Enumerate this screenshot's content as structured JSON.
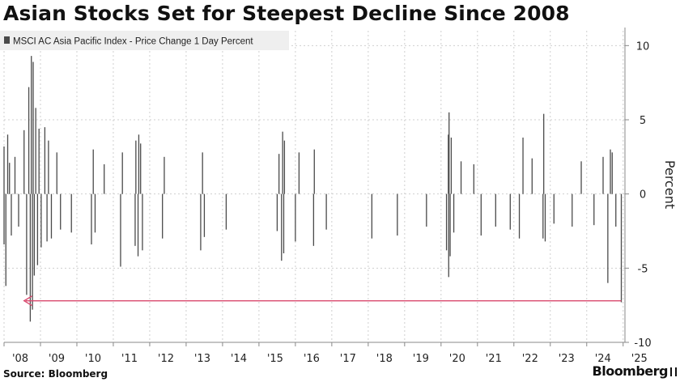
{
  "chart_data": {
    "type": "bar",
    "title": "Asian Stocks Set for Steepest Decline Since 2008",
    "legend": "MSCI AC Asia Pacific Index - Price Change 1 Day Percent",
    "ylabel": "Percent",
    "ylim": [
      -10,
      11
    ],
    "yticks": [
      {
        "value": 10,
        "label": "10"
      },
      {
        "value": 5,
        "label": "5"
      },
      {
        "value": 0,
        "label": "0"
      },
      {
        "value": -5,
        "label": "-5"
      },
      {
        "value": -10,
        "label": "-10"
      }
    ],
    "xlim": [
      2008.0,
      2025.05
    ],
    "xticks": [
      {
        "value": 2008.0,
        "label": "'08"
      },
      {
        "value": 2009.0,
        "label": "'09"
      },
      {
        "value": 2010.0,
        "label": "'10"
      },
      {
        "value": 2011.0,
        "label": "'11"
      },
      {
        "value": 2012.0,
        "label": "'12"
      },
      {
        "value": 2013.0,
        "label": "'13"
      },
      {
        "value": 2014.0,
        "label": "'14"
      },
      {
        "value": 2015.0,
        "label": "'15"
      },
      {
        "value": 2016.0,
        "label": "'16"
      },
      {
        "value": 2017.0,
        "label": "'17"
      },
      {
        "value": 2018.0,
        "label": "'18"
      },
      {
        "value": 2019.0,
        "label": "'19"
      },
      {
        "value": 2020.0,
        "label": "'20"
      },
      {
        "value": 2021.0,
        "label": "'21"
      },
      {
        "value": 2022.0,
        "label": "'22"
      },
      {
        "value": 2023.0,
        "label": "'23"
      },
      {
        "value": 2024.0,
        "label": "'24"
      },
      {
        "value": 2025.0,
        "label": "'25"
      }
    ],
    "grid": true,
    "legend_position": "top-left",
    "series_color": "#4a4a4a",
    "annotation_arrow": {
      "from_x": 2024.95,
      "to_x": 2008.55,
      "y": -7.2,
      "color": "#d9496e"
    },
    "series": [
      {
        "name": "MSCI AC Asia Pacific Index - Price Change 1 Day Percent",
        "points": [
          [
            2008.0,
            3.2
          ],
          [
            2008.0,
            -3.4
          ],
          [
            2008.05,
            -6.2
          ],
          [
            2008.1,
            4.0
          ],
          [
            2008.15,
            2.1
          ],
          [
            2008.2,
            -2.8
          ],
          [
            2008.3,
            2.5
          ],
          [
            2008.4,
            -2.2
          ],
          [
            2008.55,
            4.3
          ],
          [
            2008.62,
            -6.8
          ],
          [
            2008.68,
            7.2
          ],
          [
            2008.72,
            -8.6
          ],
          [
            2008.75,
            9.3
          ],
          [
            2008.78,
            -7.8
          ],
          [
            2008.8,
            8.9
          ],
          [
            2008.83,
            -5.5
          ],
          [
            2008.87,
            5.8
          ],
          [
            2008.92,
            -4.8
          ],
          [
            2008.96,
            4.4
          ],
          [
            2009.02,
            -3.6
          ],
          [
            2009.12,
            4.5
          ],
          [
            2009.18,
            -3.2
          ],
          [
            2009.22,
            3.6
          ],
          [
            2009.3,
            -3.0
          ],
          [
            2009.45,
            2.8
          ],
          [
            2009.55,
            -2.4
          ],
          [
            2009.85,
            -2.6
          ],
          [
            2010.4,
            -3.4
          ],
          [
            2010.45,
            3.0
          ],
          [
            2010.5,
            -2.6
          ],
          [
            2010.75,
            2.0
          ],
          [
            2011.2,
            -4.9
          ],
          [
            2011.25,
            2.8
          ],
          [
            2011.6,
            -3.5
          ],
          [
            2011.62,
            3.6
          ],
          [
            2011.68,
            -4.2
          ],
          [
            2011.7,
            4.0
          ],
          [
            2011.75,
            3.4
          ],
          [
            2011.8,
            -3.8
          ],
          [
            2012.35,
            -3.0
          ],
          [
            2012.4,
            2.5
          ],
          [
            2013.4,
            -3.8
          ],
          [
            2013.45,
            2.8
          ],
          [
            2013.5,
            -2.9
          ],
          [
            2014.1,
            -2.4
          ],
          [
            2015.5,
            -2.5
          ],
          [
            2015.55,
            2.7
          ],
          [
            2015.62,
            -4.5
          ],
          [
            2015.65,
            4.2
          ],
          [
            2015.68,
            -4.0
          ],
          [
            2015.7,
            3.6
          ],
          [
            2016.0,
            -3.2
          ],
          [
            2016.1,
            2.8
          ],
          [
            2016.5,
            -3.5
          ],
          [
            2016.52,
            3.0
          ],
          [
            2016.85,
            -2.4
          ],
          [
            2018.1,
            -3.0
          ],
          [
            2018.8,
            -2.8
          ],
          [
            2019.6,
            -2.2
          ],
          [
            2020.15,
            -3.8
          ],
          [
            2020.2,
            4.0
          ],
          [
            2020.21,
            -5.6
          ],
          [
            2020.22,
            5.5
          ],
          [
            2020.25,
            -4.2
          ],
          [
            2020.28,
            3.8
          ],
          [
            2020.35,
            -2.6
          ],
          [
            2020.55,
            2.2
          ],
          [
            2020.9,
            2.0
          ],
          [
            2021.1,
            -2.8
          ],
          [
            2021.5,
            -2.2
          ],
          [
            2021.9,
            -2.4
          ],
          [
            2022.15,
            -3.0
          ],
          [
            2022.25,
            3.8
          ],
          [
            2022.5,
            2.4
          ],
          [
            2022.8,
            -3.0
          ],
          [
            2022.82,
            5.4
          ],
          [
            2022.86,
            -3.2
          ],
          [
            2023.1,
            -2.0
          ],
          [
            2023.6,
            -2.2
          ],
          [
            2023.85,
            2.2
          ],
          [
            2024.2,
            -2.1
          ],
          [
            2024.45,
            2.5
          ],
          [
            2024.58,
            -6.0
          ],
          [
            2024.65,
            3.0
          ],
          [
            2024.7,
            2.8
          ],
          [
            2024.8,
            -2.2
          ],
          [
            2024.95,
            -7.3
          ]
        ]
      }
    ]
  },
  "footer": {
    "source": "Source: Bloomberg",
    "brand": "Bloomberg"
  }
}
